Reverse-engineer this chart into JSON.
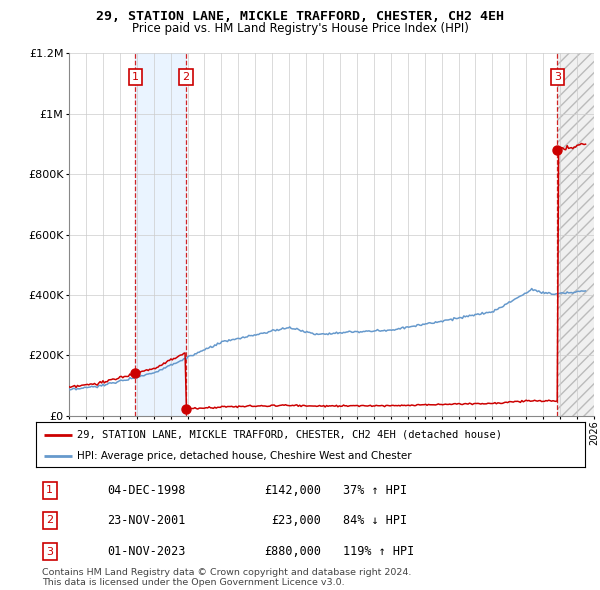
{
  "title": "29, STATION LANE, MICKLE TRAFFORD, CHESTER, CH2 4EH",
  "subtitle": "Price paid vs. HM Land Registry's House Price Index (HPI)",
  "transactions": [
    {
      "num": 1,
      "date": "04-DEC-1998",
      "price": 142000,
      "year": 1998.92,
      "hpi_pct": "37% ↑ HPI"
    },
    {
      "num": 2,
      "date": "23-NOV-2001",
      "price": 23000,
      "year": 2001.9,
      "hpi_pct": "84% ↓ HPI"
    },
    {
      "num": 3,
      "date": "01-NOV-2023",
      "price": 880000,
      "year": 2023.84,
      "hpi_pct": "119% ↑ HPI"
    }
  ],
  "legend_label_red": "29, STATION LANE, MICKLE TRAFFORD, CHESTER, CH2 4EH (detached house)",
  "legend_label_blue": "HPI: Average price, detached house, Cheshire West and Chester",
  "footnote1": "Contains HM Land Registry data © Crown copyright and database right 2024.",
  "footnote2": "This data is licensed under the Open Government Licence v3.0.",
  "xmin": 1995,
  "xmax": 2026,
  "ymin": 0,
  "ymax": 1200000,
  "hatch_start": 2023.84,
  "shade_x1": 1998.92,
  "shade_x2": 2001.9,
  "red_color": "#cc0000",
  "blue_color": "#6699cc",
  "shade_color": "#ddeeff",
  "bg_color": "#ffffff",
  "yticks": [
    0,
    200000,
    400000,
    600000,
    800000,
    1000000,
    1200000
  ],
  "ylabels": [
    "£0",
    "£200K",
    "£400K",
    "£600K",
    "£800K",
    "£1M",
    "£1.2M"
  ]
}
